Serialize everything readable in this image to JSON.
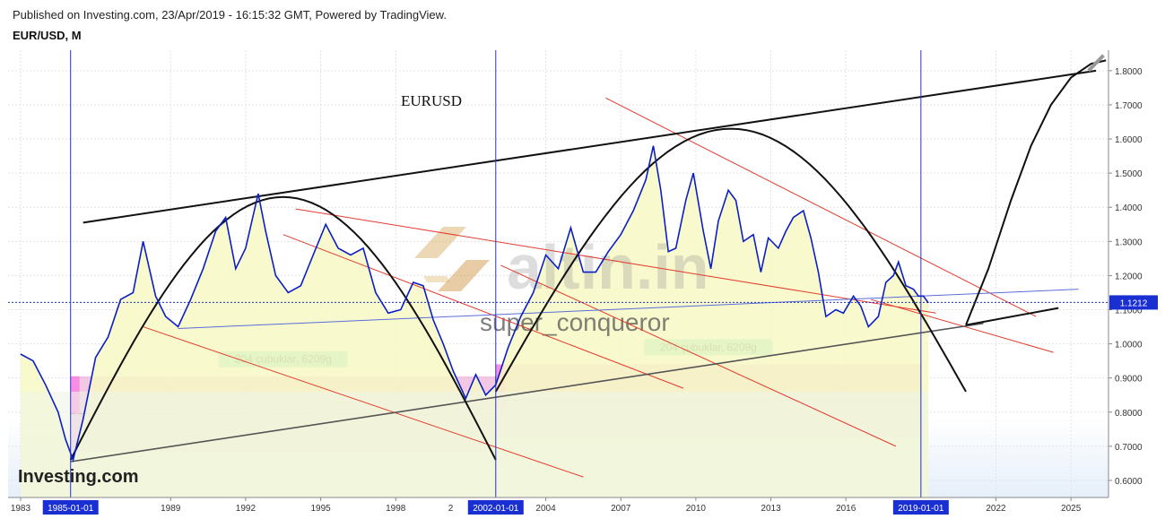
{
  "header": {
    "published": "Published on Investing.com, 23/Apr/2019 - 16:15:32 GMT, Powered by TradingView.",
    "symbol": "EUR/USD, M"
  },
  "chart_data": {
    "type": "line",
    "title": "EURUSD",
    "watermark_logo": "altin.in",
    "watermark_user": "super_conqueror",
    "brand": "Investing.com",
    "series": [
      {
        "color": "#0a1fc4",
        "points": [
          [
            1983.0,
            0.97
          ],
          [
            1983.5,
            0.95
          ],
          [
            1984.0,
            0.88
          ],
          [
            1984.5,
            0.8
          ],
          [
            1984.8,
            0.72
          ],
          [
            1985.1,
            0.66
          ],
          [
            1985.5,
            0.78
          ],
          [
            1986.0,
            0.96
          ],
          [
            1986.5,
            1.02
          ],
          [
            1987.0,
            1.13
          ],
          [
            1987.5,
            1.15
          ],
          [
            1987.9,
            1.3
          ],
          [
            1988.4,
            1.14
          ],
          [
            1988.8,
            1.08
          ],
          [
            1989.3,
            1.05
          ],
          [
            1989.8,
            1.13
          ],
          [
            1990.3,
            1.22
          ],
          [
            1990.8,
            1.33
          ],
          [
            1991.2,
            1.37
          ],
          [
            1991.6,
            1.22
          ],
          [
            1992.0,
            1.28
          ],
          [
            1992.5,
            1.44
          ],
          [
            1992.8,
            1.33
          ],
          [
            1993.2,
            1.2
          ],
          [
            1993.7,
            1.15
          ],
          [
            1994.2,
            1.17
          ],
          [
            1994.7,
            1.26
          ],
          [
            1995.2,
            1.35
          ],
          [
            1995.7,
            1.28
          ],
          [
            1996.2,
            1.26
          ],
          [
            1996.7,
            1.28
          ],
          [
            1997.2,
            1.15
          ],
          [
            1997.7,
            1.09
          ],
          [
            1998.2,
            1.1
          ],
          [
            1998.7,
            1.18
          ],
          [
            1999.1,
            1.17
          ],
          [
            1999.5,
            1.07
          ],
          [
            1999.9,
            1.0
          ],
          [
            2000.3,
            0.92
          ],
          [
            2000.8,
            0.84
          ],
          [
            2001.2,
            0.91
          ],
          [
            2001.6,
            0.85
          ],
          [
            2002.0,
            0.88
          ],
          [
            2002.5,
            0.99
          ],
          [
            2003.0,
            1.08
          ],
          [
            2003.5,
            1.15
          ],
          [
            2004.0,
            1.26
          ],
          [
            2004.5,
            1.22
          ],
          [
            2005.0,
            1.34
          ],
          [
            2005.5,
            1.21
          ],
          [
            2006.0,
            1.21
          ],
          [
            2006.5,
            1.27
          ],
          [
            2007.0,
            1.32
          ],
          [
            2007.5,
            1.39
          ],
          [
            2008.0,
            1.48
          ],
          [
            2008.3,
            1.58
          ],
          [
            2008.6,
            1.45
          ],
          [
            2008.9,
            1.27
          ],
          [
            2009.2,
            1.28
          ],
          [
            2009.6,
            1.42
          ],
          [
            2009.9,
            1.5
          ],
          [
            2010.3,
            1.33
          ],
          [
            2010.6,
            1.22
          ],
          [
            2010.9,
            1.36
          ],
          [
            2011.3,
            1.45
          ],
          [
            2011.6,
            1.42
          ],
          [
            2011.9,
            1.3
          ],
          [
            2012.3,
            1.32
          ],
          [
            2012.6,
            1.21
          ],
          [
            2012.9,
            1.31
          ],
          [
            2013.3,
            1.28
          ],
          [
            2013.6,
            1.33
          ],
          [
            2013.9,
            1.37
          ],
          [
            2014.3,
            1.39
          ],
          [
            2014.6,
            1.31
          ],
          [
            2014.9,
            1.21
          ],
          [
            2015.2,
            1.08
          ],
          [
            2015.6,
            1.1
          ],
          [
            2015.9,
            1.09
          ],
          [
            2016.3,
            1.14
          ],
          [
            2016.6,
            1.11
          ],
          [
            2016.9,
            1.05
          ],
          [
            2017.3,
            1.08
          ],
          [
            2017.6,
            1.18
          ],
          [
            2017.9,
            1.2
          ],
          [
            2018.1,
            1.24
          ],
          [
            2018.4,
            1.17
          ],
          [
            2018.7,
            1.16
          ],
          [
            2018.9,
            1.14
          ],
          [
            2019.1,
            1.14
          ],
          [
            2019.3,
            1.12
          ]
        ]
      }
    ],
    "current_price": "1.1212",
    "x_ticks": [
      "1983",
      "1989",
      "1992",
      "1995",
      "1998",
      "2004",
      "2007",
      "2010",
      "2013",
      "2016",
      "2022",
      "2025"
    ],
    "x_tick_values": [
      1983,
      1989,
      1992,
      1995,
      1998,
      2004,
      2007,
      2010,
      2013,
      2016,
      2022,
      2025
    ],
    "y_ticks": [
      "0.6000",
      "0.7000",
      "0.8000",
      "0.9000",
      "1.0000",
      "1.1000",
      "1.2000",
      "1.3000",
      "1.4000",
      "1.5000",
      "1.6000",
      "1.7000",
      "1.8000"
    ],
    "y_tick_values": [
      0.6,
      0.7,
      0.8,
      0.9,
      1.0,
      1.1,
      1.2,
      1.3,
      1.4,
      1.5,
      1.6,
      1.7,
      1.8
    ],
    "xlim": [
      1982.5,
      2026.5
    ],
    "ylim": [
      0.55,
      1.86
    ],
    "date_markers": [
      {
        "label": "1985-01-01",
        "x": 1985.0
      },
      {
        "label": "2002-01-01",
        "x": 2002.0
      },
      {
        "label": "2019-01-01",
        "x": 2019.0
      }
    ],
    "partial_labels": [
      {
        "text": "6",
        "x": 1986.0
      },
      {
        "text": "2",
        "x": 2000.2
      }
    ],
    "range_boxes": [
      {
        "x0": 1985.0,
        "x1": 2002.0,
        "y0": 0.685,
        "y1": 0.905,
        "label": "204 çubuklar, 6209g",
        "label_at": [
          1993.5,
          0.955
        ],
        "dash_y": 0.795
      },
      {
        "x0": 2002.0,
        "x1": 2019.0,
        "y0": 0.725,
        "y1": 0.94,
        "label": "204 çubuklar, 6209g",
        "label_at": [
          2010.5,
          0.99
        ],
        "dash_y": 0.835
      }
    ],
    "black_lines": [
      [
        [
          1985.5,
          1.355
        ],
        [
          2026.0,
          1.8
        ]
      ],
      [
        [
          1985.0,
          0.655
        ],
        [
          2021.5,
          1.06
        ]
      ],
      [
        [
          2020.8,
          1.055
        ],
        [
          2024.5,
          1.105
        ]
      ]
    ],
    "arcs": [
      {
        "x0": 1985.0,
        "x1": 2002.0,
        "y0": 0.66,
        "peak": 1.43
      },
      {
        "x0": 2002.0,
        "x1": 2020.8,
        "y0": 0.86,
        "peak": 1.63
      }
    ],
    "projection": [
      [
        2020.8,
        1.055
      ],
      [
        2021.7,
        1.22
      ],
      [
        2022.6,
        1.42
      ],
      [
        2023.4,
        1.58
      ],
      [
        2024.2,
        1.7
      ],
      [
        2025.0,
        1.78
      ],
      [
        2025.8,
        1.82
      ],
      [
        2026.4,
        1.83
      ]
    ],
    "red_lines": [
      [
        [
          1994.0,
          1.395
        ],
        [
          2019.6,
          1.09
        ]
      ],
      [
        [
          2006.4,
          1.72
        ],
        [
          2023.6,
          1.08
        ]
      ],
      [
        [
          1993.5,
          1.32
        ],
        [
          2009.5,
          0.87
        ]
      ],
      [
        [
          1987.9,
          1.05
        ],
        [
          2005.5,
          0.61
        ]
      ],
      [
        [
          2002.2,
          1.23
        ],
        [
          2018.0,
          0.7
        ]
      ],
      [
        [
          2017.0,
          1.13
        ],
        [
          2024.3,
          0.975
        ]
      ]
    ],
    "blue_line": [
      [
        1989.3,
        1.045
      ],
      [
        2025.3,
        1.16
      ]
    ]
  }
}
